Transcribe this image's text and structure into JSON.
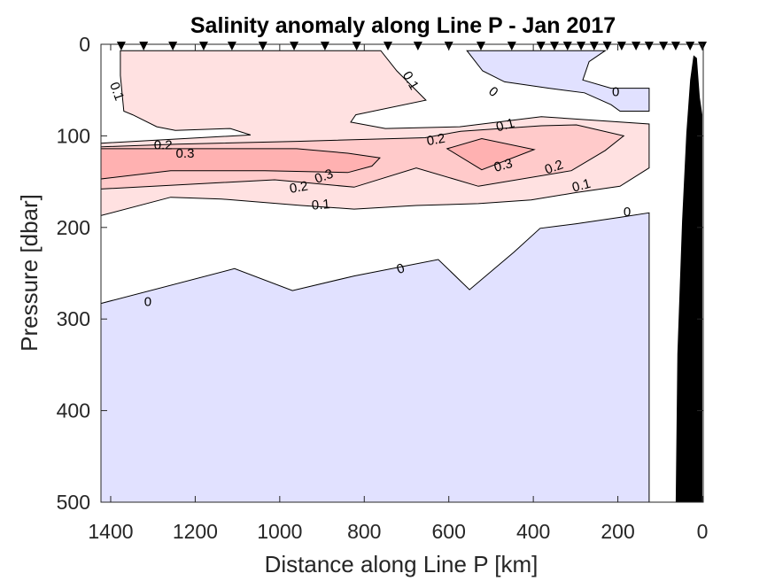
{
  "chart_data": {
    "type": "contour",
    "title": "Salinity anomaly along Line P - Jan 2017",
    "xlabel": "Distance along Line P [km]",
    "ylabel": "Pressure [dbar]",
    "xlim": [
      1423,
      0
    ],
    "ylim": [
      0,
      500
    ],
    "x_reversed": true,
    "y_reversed": true,
    "xticks": [
      1400,
      1200,
      1000,
      800,
      600,
      400,
      200,
      0
    ],
    "xtick_labels": [
      "1400",
      "1200",
      "1000",
      "800",
      "600",
      "400",
      "200",
      "0"
    ],
    "yticks": [
      0,
      100,
      200,
      300,
      400,
      500
    ],
    "ytick_labels": [
      "0",
      "100",
      "200",
      "300",
      "400",
      "500"
    ],
    "contour_levels": [
      0,
      0.1,
      0.2,
      0.3
    ],
    "colors": {
      "neg": "#E1E1FF",
      "l01": "#FFE1E1",
      "l02": "#FFCACA",
      "l03": "#FFB1B1",
      "bathymetry": "#000000"
    },
    "regions": [
      {
        "level": "0.1",
        "color": "l01",
        "points": [
          [
            1377,
            7
          ],
          [
            761,
            7
          ],
          [
            723,
            29
          ],
          [
            654,
            61
          ],
          [
            820,
            77
          ],
          [
            832,
            85
          ],
          [
            750,
            92
          ],
          [
            574,
            90
          ],
          [
            381,
            79
          ],
          [
            126,
            87
          ],
          [
            126,
            135
          ],
          [
            195,
            155
          ],
          [
            300,
            162
          ],
          [
            405,
            170
          ],
          [
            530,
            174
          ],
          [
            677,
            176
          ],
          [
            824,
            180
          ],
          [
            949,
            176
          ],
          [
            1138,
            169
          ],
          [
            1258,
            167
          ],
          [
            1423,
            187
          ],
          [
            1423,
            108
          ],
          [
            1069,
            99
          ],
          [
            1117,
            92
          ],
          [
            1247,
            94
          ],
          [
            1291,
            90
          ],
          [
            1348,
            77
          ],
          [
            1369,
            73
          ],
          [
            1377,
            34
          ]
        ]
      },
      {
        "level": "0.2",
        "color": "l02",
        "points": [
          [
            1423,
            158
          ],
          [
            1012,
            148
          ],
          [
            824,
            156
          ],
          [
            677,
            135
          ],
          [
            530,
            155
          ],
          [
            310,
            138
          ],
          [
            230,
            116
          ],
          [
            186,
            100
          ],
          [
            298,
            88
          ],
          [
            381,
            89
          ],
          [
            572,
            95
          ],
          [
            656,
            102
          ],
          [
            960,
            106
          ],
          [
            1241,
            109
          ],
          [
            1423,
            112
          ]
        ]
      },
      {
        "level": "0.3",
        "color": "l03",
        "points": [
          [
            1423,
            114
          ],
          [
            960,
            114
          ],
          [
            839,
            119
          ],
          [
            763,
            124
          ],
          [
            782,
            133
          ],
          [
            839,
            140
          ],
          [
            1035,
            138
          ],
          [
            1258,
            138
          ],
          [
            1423,
            147
          ]
        ]
      },
      {
        "level": "0.3",
        "color": "l03",
        "points": [
          [
            604,
            114
          ],
          [
            522,
            103
          ],
          [
            398,
            115
          ],
          [
            522,
            137
          ]
        ]
      },
      {
        "level": "0",
        "color": "neg",
        "points": [
          [
            557,
            7
          ],
          [
            230,
            7
          ],
          [
            268,
            19
          ],
          [
            283,
            39
          ],
          [
            216,
            48
          ],
          [
            126,
            48
          ],
          [
            126,
            73
          ],
          [
            195,
            73
          ],
          [
            216,
            66
          ],
          [
            279,
            53
          ],
          [
            363,
            48
          ],
          [
            468,
            41
          ],
          [
            520,
            29
          ]
        ]
      },
      {
        "level": "0",
        "color": "neg",
        "points": [
          [
            1423,
            283
          ],
          [
            1107,
            245
          ],
          [
            970,
            269
          ],
          [
            824,
            253
          ],
          [
            625,
            235
          ],
          [
            551,
            268
          ],
          [
            446,
            227
          ],
          [
            384,
            201
          ],
          [
            300,
            196
          ],
          [
            195,
            189
          ],
          [
            126,
            184
          ],
          [
            126,
            500
          ],
          [
            1423,
            500
          ]
        ]
      }
    ],
    "contour_labels": [
      {
        "text": "0.1",
        "x": 1383,
        "y": 51,
        "rot": 70
      },
      {
        "text": "0.1",
        "x": 688,
        "y": 39,
        "rot": 60
      },
      {
        "text": "0",
        "x": 493,
        "y": 51,
        "rot": 40
      },
      {
        "text": "0",
        "x": 205,
        "y": 51,
        "rot": 0
      },
      {
        "text": "0.1",
        "x": 467,
        "y": 87,
        "rot": -15
      },
      {
        "text": "0.2",
        "x": 631,
        "y": 103,
        "rot": -10
      },
      {
        "text": "0.2",
        "x": 1251,
        "y": 109,
        "rot": 0
      },
      {
        "text": "0.3",
        "x": 1249,
        "y": 118,
        "rot": 0
      },
      {
        "text": "0.3",
        "x": 903,
        "y": 143,
        "rot": -20
      },
      {
        "text": "0.2",
        "x": 949,
        "y": 155,
        "rot": -10
      },
      {
        "text": "0.1",
        "x": 903,
        "y": 174,
        "rot": -5
      },
      {
        "text": "0.3",
        "x": 472,
        "y": 131,
        "rot": -15
      },
      {
        "text": "0.2",
        "x": 352,
        "y": 133,
        "rot": -20
      },
      {
        "text": "0.1",
        "x": 287,
        "y": 153,
        "rot": -15
      },
      {
        "text": "0",
        "x": 178,
        "y": 182,
        "rot": 0
      },
      {
        "text": "0",
        "x": 715,
        "y": 244,
        "rot": -20
      },
      {
        "text": "0",
        "x": 1312,
        "y": 280,
        "rot": 0
      }
    ],
    "stations_km": [
      1375,
      1322,
      1253,
      1180,
      1113,
      1040,
      966,
      893,
      818,
      744,
      673,
      600,
      524,
      451,
      382,
      350,
      319,
      287,
      256,
      225,
      191,
      157,
      126,
      92,
      63,
      29,
      0
    ],
    "bathymetry": [
      [
        63,
        500
      ],
      [
        59,
        338
      ],
      [
        48,
        193
      ],
      [
        38,
        97
      ],
      [
        29,
        39
      ],
      [
        21,
        12
      ],
      [
        13,
        15
      ],
      [
        6,
        58
      ],
      [
        0,
        77
      ],
      [
        0,
        500
      ]
    ]
  }
}
